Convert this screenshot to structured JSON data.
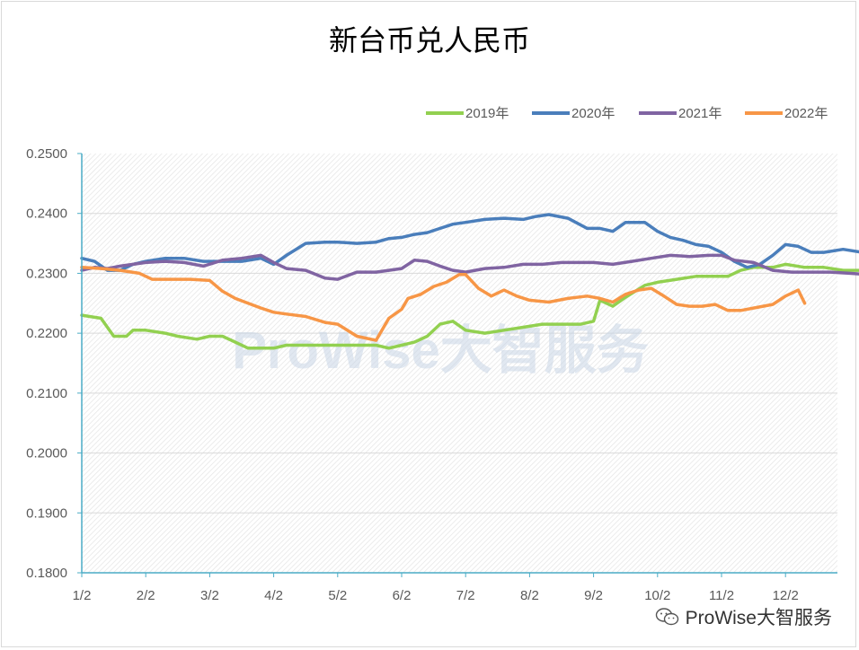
{
  "chart_data": {
    "type": "line",
    "title": "新台币兑人民币",
    "xlabel": "",
    "ylabel": "",
    "x_ticks": [
      "1/2",
      "2/2",
      "3/2",
      "4/2",
      "5/2",
      "6/2",
      "7/2",
      "8/2",
      "9/2",
      "10/2",
      "11/2",
      "12/2"
    ],
    "ylim": [
      0.18,
      0.25
    ],
    "y_ticks": [
      "0.2500",
      "0.2400",
      "0.2300",
      "0.2200",
      "0.2100",
      "0.2000",
      "0.1900",
      "0.1800"
    ],
    "grid": true,
    "legend_position": "top-right",
    "watermark": "ProWise大智服务",
    "series": [
      {
        "name": "2019年",
        "color": "#92d050",
        "x": [
          0,
          0.3,
          0.5,
          0.7,
          0.8,
          1.0,
          1.3,
          1.5,
          1.8,
          2.0,
          2.2,
          2.4,
          2.6,
          2.8,
          3.0,
          3.2,
          3.5,
          3.8,
          4.0,
          4.3,
          4.6,
          4.8,
          5.0,
          5.2,
          5.4,
          5.6,
          5.8,
          6.0,
          6.3,
          6.6,
          6.9,
          7.2,
          7.5,
          7.8,
          8.0,
          8.1,
          8.3,
          8.5,
          8.8,
          9.0,
          9.3,
          9.6,
          9.9,
          10.1,
          10.3,
          10.5,
          10.8,
          11.0,
          11.3,
          11.6,
          11.9,
          12.2,
          12.5,
          12.8,
          13.0
        ],
        "y": [
          0.223,
          0.2225,
          0.2195,
          0.2195,
          0.2205,
          0.2205,
          0.22,
          0.2195,
          0.219,
          0.2195,
          0.2195,
          0.2185,
          0.2175,
          0.2175,
          0.2175,
          0.218,
          0.218,
          0.218,
          0.218,
          0.218,
          0.218,
          0.2175,
          0.218,
          0.2185,
          0.2195,
          0.2215,
          0.222,
          0.2205,
          0.22,
          0.2205,
          0.221,
          0.2215,
          0.2215,
          0.2215,
          0.222,
          0.2255,
          0.2245,
          0.226,
          0.228,
          0.2285,
          0.229,
          0.2295,
          0.2295,
          0.2295,
          0.2305,
          0.231,
          0.231,
          0.2315,
          0.231,
          0.231,
          0.2305,
          0.2305,
          0.231,
          0.232,
          0.2325
        ]
      },
      {
        "name": "2020年",
        "color": "#4a7ebb",
        "x": [
          0,
          0.2,
          0.4,
          0.6,
          0.8,
          1.0,
          1.3,
          1.6,
          1.9,
          2.2,
          2.5,
          2.8,
          3.0,
          3.2,
          3.5,
          3.8,
          4.0,
          4.3,
          4.6,
          4.8,
          5.0,
          5.2,
          5.4,
          5.6,
          5.8,
          6.0,
          6.3,
          6.6,
          6.9,
          7.1,
          7.3,
          7.6,
          7.9,
          8.1,
          8.3,
          8.5,
          8.8,
          9.0,
          9.2,
          9.4,
          9.6,
          9.8,
          10.0,
          10.2,
          10.4,
          10.6,
          10.8,
          11.0,
          11.2,
          11.4,
          11.6,
          11.9,
          12.2,
          12.5,
          12.8,
          13.0
        ],
        "y": [
          0.2325,
          0.232,
          0.2305,
          0.2305,
          0.2315,
          0.232,
          0.2325,
          0.2325,
          0.232,
          0.232,
          0.232,
          0.2325,
          0.2315,
          0.233,
          0.235,
          0.2352,
          0.2352,
          0.235,
          0.2352,
          0.2358,
          0.236,
          0.2365,
          0.2368,
          0.2375,
          0.2382,
          0.2385,
          0.239,
          0.2392,
          0.239,
          0.2395,
          0.2398,
          0.2392,
          0.2375,
          0.2375,
          0.237,
          0.2385,
          0.2385,
          0.237,
          0.236,
          0.2355,
          0.2348,
          0.2345,
          0.2335,
          0.232,
          0.231,
          0.2315,
          0.233,
          0.2348,
          0.2345,
          0.2335,
          0.2335,
          0.234,
          0.2335,
          0.232,
          0.232,
          0.2315
        ]
      },
      {
        "name": "2021年",
        "color": "#8064a2",
        "x": [
          0,
          0.2,
          0.4,
          0.6,
          0.8,
          1.0,
          1.3,
          1.6,
          1.9,
          2.2,
          2.5,
          2.8,
          3.0,
          3.2,
          3.5,
          3.8,
          4.0,
          4.3,
          4.6,
          4.8,
          5.0,
          5.2,
          5.4,
          5.6,
          5.8,
          6.0,
          6.3,
          6.6,
          6.9,
          7.2,
          7.5,
          7.8,
          8.0,
          8.3,
          8.6,
          8.9,
          9.2,
          9.5,
          9.8,
          10.0,
          10.2,
          10.5,
          10.8,
          11.1,
          11.4,
          11.7,
          12.0,
          12.3,
          12.6,
          12.8,
          13.0
        ],
        "y": [
          0.2305,
          0.231,
          0.2308,
          0.2312,
          0.2315,
          0.2318,
          0.232,
          0.2318,
          0.2312,
          0.2322,
          0.2325,
          0.233,
          0.2318,
          0.2308,
          0.2305,
          0.2292,
          0.229,
          0.2302,
          0.2302,
          0.2305,
          0.2308,
          0.2322,
          0.232,
          0.2312,
          0.2305,
          0.2302,
          0.2308,
          0.231,
          0.2315,
          0.2315,
          0.2318,
          0.2318,
          0.2318,
          0.2315,
          0.232,
          0.2325,
          0.233,
          0.2328,
          0.233,
          0.233,
          0.2322,
          0.2318,
          0.2305,
          0.2302,
          0.2302,
          0.2302,
          0.23,
          0.2298,
          0.2302,
          0.2298,
          0.2315
        ]
      },
      {
        "name": "2022年",
        "color": "#f79646",
        "x": [
          0,
          0.3,
          0.6,
          0.9,
          1.1,
          1.4,
          1.7,
          2.0,
          2.2,
          2.4,
          2.6,
          2.8,
          3.0,
          3.2,
          3.5,
          3.8,
          4.0,
          4.3,
          4.6,
          4.8,
          5.0,
          5.1,
          5.3,
          5.5,
          5.7,
          5.9,
          6.0,
          6.2,
          6.4,
          6.6,
          6.8,
          7.0,
          7.3,
          7.6,
          7.9,
          8.1,
          8.3,
          8.5,
          8.7,
          8.9,
          9.1,
          9.3,
          9.5,
          9.7,
          9.9,
          10.1,
          10.3,
          10.5,
          10.8,
          11.0,
          11.2,
          11.3
        ],
        "y": [
          0.231,
          0.2308,
          0.2305,
          0.23,
          0.229,
          0.229,
          0.229,
          0.2288,
          0.227,
          0.2258,
          0.225,
          0.2242,
          0.2235,
          0.2232,
          0.2228,
          0.2218,
          0.2215,
          0.2195,
          0.2188,
          0.2225,
          0.224,
          0.2258,
          0.2265,
          0.2278,
          0.2285,
          0.2298,
          0.2298,
          0.2275,
          0.2262,
          0.2272,
          0.2262,
          0.2255,
          0.2252,
          0.2258,
          0.2262,
          0.2258,
          0.2252,
          0.2265,
          0.2272,
          0.2275,
          0.2262,
          0.2248,
          0.2245,
          0.2245,
          0.2248,
          0.2238,
          0.2238,
          0.2242,
          0.2248,
          0.2262,
          0.2272,
          0.225
        ]
      }
    ]
  },
  "footer": {
    "account": "ProWise大智服务"
  }
}
